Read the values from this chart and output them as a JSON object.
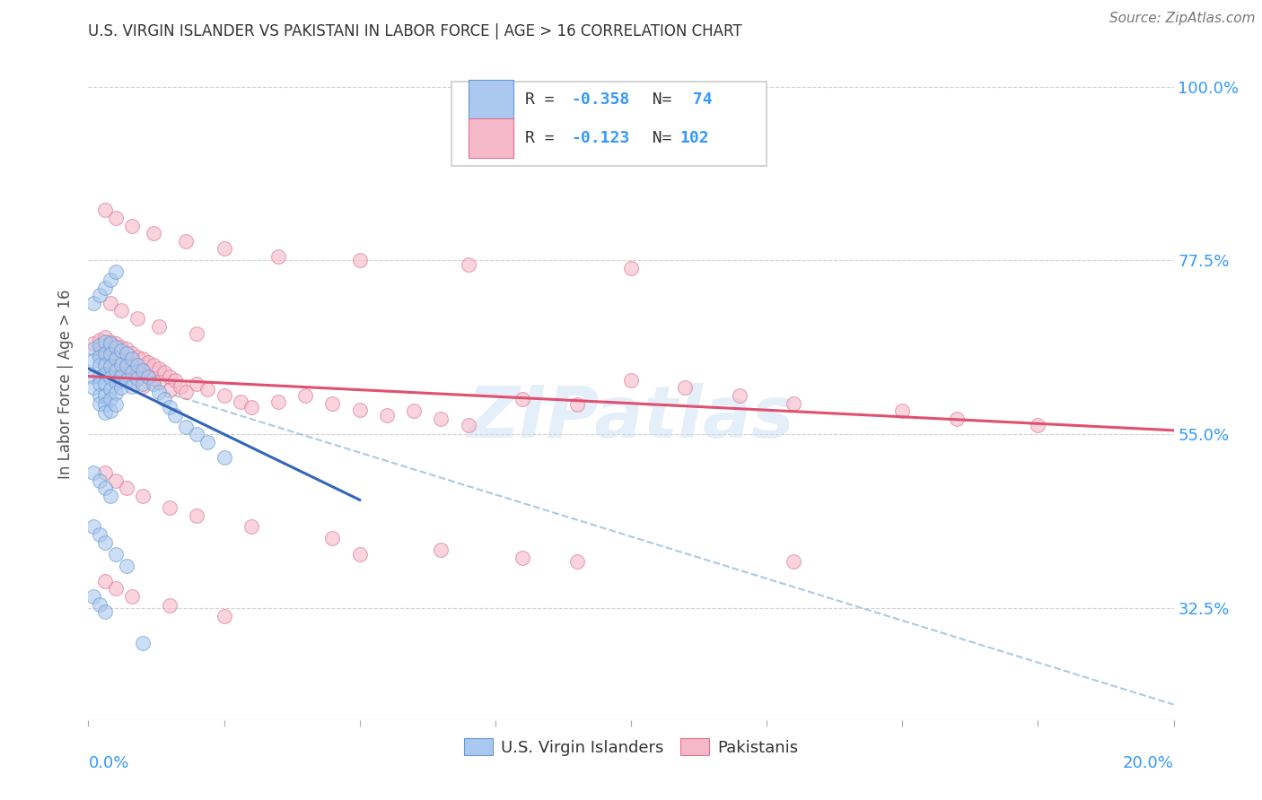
{
  "title": "U.S. VIRGIN ISLANDER VS PAKISTANI IN LABOR FORCE | AGE > 16 CORRELATION CHART",
  "source": "Source: ZipAtlas.com",
  "ylabel": "In Labor Force | Age > 16",
  "ytick_labels": [
    "100.0%",
    "77.5%",
    "55.0%",
    "32.5%"
  ],
  "ytick_values": [
    1.0,
    0.775,
    0.55,
    0.325
  ],
  "xmin": 0.0,
  "xmax": 0.2,
  "ymin": 0.18,
  "ymax": 1.05,
  "blue_color": "#aac8f0",
  "pink_color": "#f5b8c8",
  "blue_edge_color": "#6699cc",
  "pink_edge_color": "#e07090",
  "blue_line_color": "#3366bb",
  "pink_line_color": "#e05070",
  "dashed_line_color": "#99bbdd",
  "text_color_blue": "#3399ff",
  "text_color_dark": "#333344",
  "background_color": "#ffffff",
  "grid_color": "#cccccc",
  "watermark": "ZIPatlas",
  "blue_line_x": [
    0.0,
    0.05
  ],
  "blue_line_y": [
    0.635,
    0.465
  ],
  "pink_line_x": [
    0.0,
    0.2
  ],
  "pink_line_y": [
    0.625,
    0.555
  ],
  "dash_line_x": [
    0.0,
    0.2
  ],
  "dash_line_y": [
    0.635,
    0.2
  ],
  "blue_scatter_x": [
    0.001,
    0.001,
    0.001,
    0.001,
    0.002,
    0.002,
    0.002,
    0.002,
    0.002,
    0.002,
    0.002,
    0.003,
    0.003,
    0.003,
    0.003,
    0.003,
    0.003,
    0.003,
    0.003,
    0.004,
    0.004,
    0.004,
    0.004,
    0.004,
    0.004,
    0.004,
    0.005,
    0.005,
    0.005,
    0.005,
    0.005,
    0.005,
    0.006,
    0.006,
    0.006,
    0.006,
    0.007,
    0.007,
    0.007,
    0.008,
    0.008,
    0.008,
    0.009,
    0.009,
    0.01,
    0.01,
    0.011,
    0.012,
    0.013,
    0.014,
    0.015,
    0.016,
    0.018,
    0.02,
    0.022,
    0.025,
    0.001,
    0.002,
    0.003,
    0.004,
    0.005,
    0.001,
    0.002,
    0.003,
    0.004,
    0.001,
    0.002,
    0.003,
    0.005,
    0.007,
    0.001,
    0.002,
    0.003,
    0.01
  ],
  "blue_scatter_y": [
    0.66,
    0.645,
    0.625,
    0.61,
    0.665,
    0.65,
    0.64,
    0.625,
    0.615,
    0.6,
    0.59,
    0.67,
    0.655,
    0.64,
    0.628,
    0.615,
    0.6,
    0.588,
    0.578,
    0.668,
    0.653,
    0.638,
    0.623,
    0.608,
    0.595,
    0.58,
    0.663,
    0.648,
    0.633,
    0.618,
    0.603,
    0.588,
    0.658,
    0.64,
    0.625,
    0.61,
    0.655,
    0.638,
    0.62,
    0.648,
    0.63,
    0.612,
    0.64,
    0.622,
    0.633,
    0.615,
    0.625,
    0.615,
    0.605,
    0.595,
    0.585,
    0.575,
    0.56,
    0.55,
    0.54,
    0.52,
    0.72,
    0.73,
    0.74,
    0.75,
    0.76,
    0.5,
    0.49,
    0.48,
    0.47,
    0.43,
    0.42,
    0.41,
    0.395,
    0.38,
    0.34,
    0.33,
    0.32,
    0.28
  ],
  "pink_scatter_x": [
    0.001,
    0.002,
    0.002,
    0.003,
    0.003,
    0.003,
    0.004,
    0.004,
    0.004,
    0.005,
    0.005,
    0.005,
    0.005,
    0.006,
    0.006,
    0.006,
    0.007,
    0.007,
    0.007,
    0.008,
    0.008,
    0.008,
    0.009,
    0.009,
    0.01,
    0.01,
    0.01,
    0.011,
    0.011,
    0.012,
    0.012,
    0.013,
    0.013,
    0.014,
    0.015,
    0.015,
    0.016,
    0.017,
    0.018,
    0.02,
    0.022,
    0.025,
    0.028,
    0.03,
    0.035,
    0.04,
    0.045,
    0.05,
    0.055,
    0.06,
    0.065,
    0.07,
    0.08,
    0.09,
    0.1,
    0.11,
    0.12,
    0.13,
    0.15,
    0.16,
    0.175,
    0.003,
    0.005,
    0.008,
    0.012,
    0.018,
    0.025,
    0.035,
    0.05,
    0.07,
    0.1,
    0.003,
    0.005,
    0.007,
    0.01,
    0.015,
    0.02,
    0.03,
    0.045,
    0.065,
    0.09,
    0.004,
    0.006,
    0.009,
    0.013,
    0.02,
    0.003,
    0.005,
    0.008,
    0.015,
    0.025,
    0.05,
    0.08,
    0.13
  ],
  "pink_scatter_y": [
    0.668,
    0.672,
    0.655,
    0.675,
    0.658,
    0.64,
    0.67,
    0.653,
    0.635,
    0.668,
    0.65,
    0.632,
    0.615,
    0.663,
    0.645,
    0.628,
    0.66,
    0.642,
    0.625,
    0.655,
    0.638,
    0.62,
    0.65,
    0.632,
    0.648,
    0.63,
    0.612,
    0.643,
    0.625,
    0.64,
    0.622,
    0.635,
    0.617,
    0.63,
    0.625,
    0.607,
    0.62,
    0.612,
    0.605,
    0.615,
    0.608,
    0.6,
    0.592,
    0.585,
    0.592,
    0.6,
    0.59,
    0.582,
    0.575,
    0.58,
    0.57,
    0.562,
    0.595,
    0.588,
    0.62,
    0.61,
    0.6,
    0.59,
    0.58,
    0.57,
    0.562,
    0.84,
    0.83,
    0.82,
    0.81,
    0.8,
    0.79,
    0.78,
    0.775,
    0.77,
    0.765,
    0.5,
    0.49,
    0.48,
    0.47,
    0.455,
    0.445,
    0.43,
    0.415,
    0.4,
    0.385,
    0.72,
    0.71,
    0.7,
    0.69,
    0.68,
    0.36,
    0.35,
    0.34,
    0.328,
    0.315,
    0.395,
    0.39,
    0.385
  ]
}
